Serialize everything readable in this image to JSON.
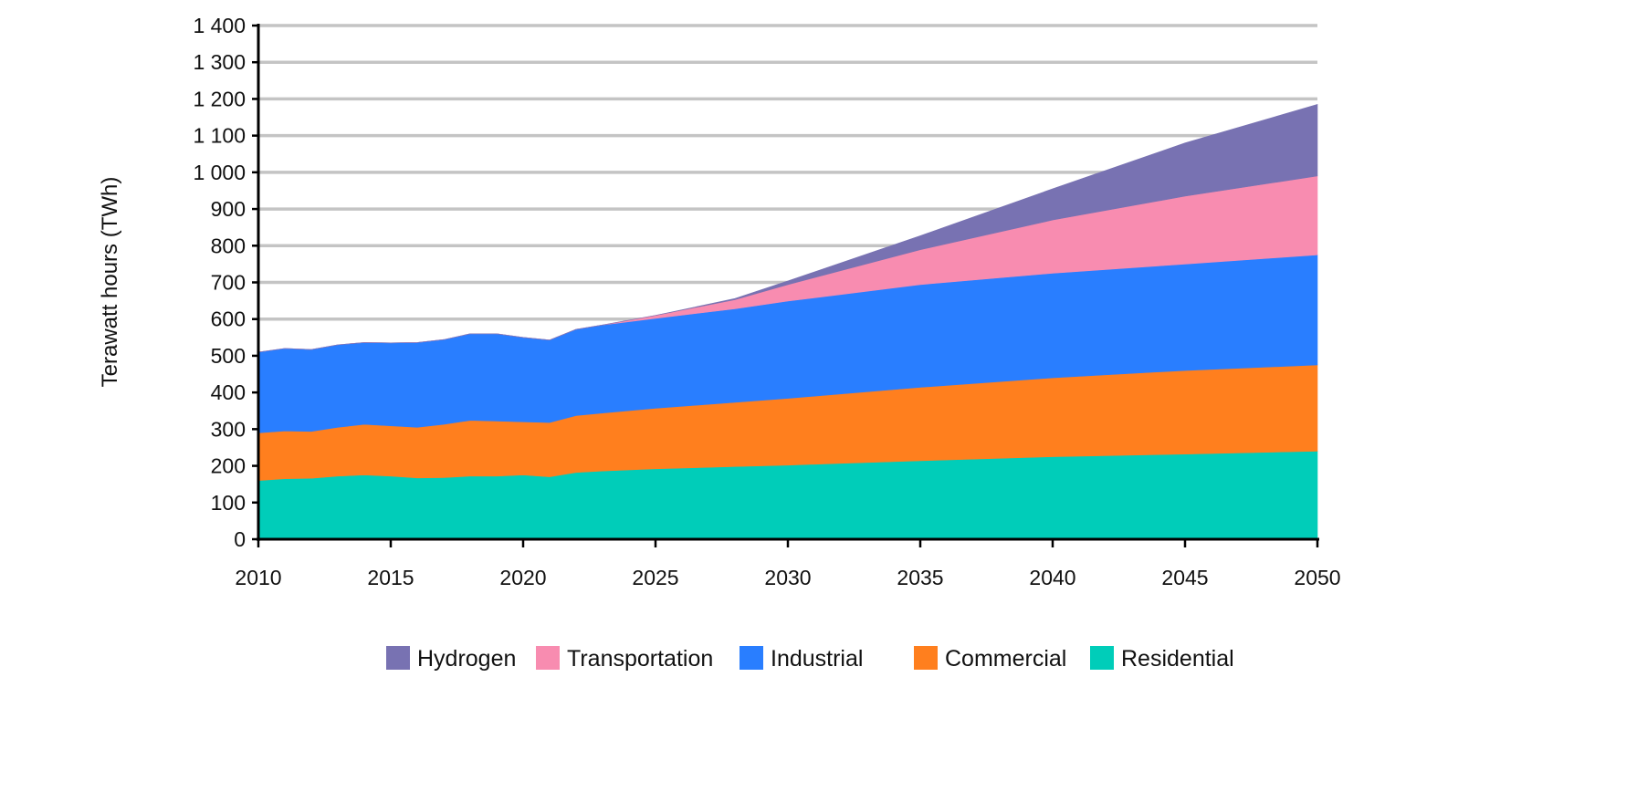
{
  "chart_data": {
    "type": "area",
    "stacked": true,
    "title": "",
    "xlabel": "",
    "ylabel": "Terawatt hours (TWh)",
    "xlim": [
      2010,
      2050
    ],
    "ylim": [
      0,
      1400
    ],
    "grid": true,
    "legend_position": "bottom",
    "x": [
      2010,
      2011,
      2012,
      2013,
      2014,
      2015,
      2016,
      2017,
      2018,
      2019,
      2020,
      2021,
      2022,
      2023,
      2025,
      2028,
      2030,
      2035,
      2040,
      2045,
      2050
    ],
    "x_ticks": [
      {
        "value": 2010,
        "label": "2010"
      },
      {
        "value": 2015,
        "label": "2015"
      },
      {
        "value": 2020,
        "label": "2020"
      },
      {
        "value": 2025,
        "label": "2025"
      },
      {
        "value": 2030,
        "label": "2030"
      },
      {
        "value": 2035,
        "label": "2035"
      },
      {
        "value": 2040,
        "label": "2040"
      },
      {
        "value": 2045,
        "label": "2045"
      },
      {
        "value": 2050,
        "label": "2050"
      }
    ],
    "y_ticks": [
      {
        "value": 0,
        "label": "0"
      },
      {
        "value": 100,
        "label": "100"
      },
      {
        "value": 200,
        "label": "200"
      },
      {
        "value": 300,
        "label": "300"
      },
      {
        "value": 400,
        "label": "400"
      },
      {
        "value": 500,
        "label": "500"
      },
      {
        "value": 600,
        "label": "600"
      },
      {
        "value": 700,
        "label": "700"
      },
      {
        "value": 800,
        "label": "800"
      },
      {
        "value": 900,
        "label": "900"
      },
      {
        "value": 1000,
        "label": "1 000"
      },
      {
        "value": 1100,
        "label": "1 100"
      },
      {
        "value": 1200,
        "label": "1 200"
      },
      {
        "value": 1300,
        "label": "1 300"
      },
      {
        "value": 1400,
        "label": "1 400"
      }
    ],
    "series": [
      {
        "name": "Residential",
        "color": "#00cdb9",
        "values": [
          160,
          165,
          166,
          172,
          175,
          172,
          167,
          168,
          172,
          172,
          175,
          170,
          182,
          186,
          192,
          198,
          202,
          214,
          225,
          232,
          240
        ]
      },
      {
        "name": "Commercial",
        "color": "#ff7f1e",
        "values": [
          130,
          130,
          128,
          133,
          138,
          137,
          138,
          145,
          152,
          150,
          145,
          148,
          155,
          158,
          165,
          175,
          182,
          200,
          215,
          228,
          235
        ]
      },
      {
        "name": "Industrial",
        "color": "#297eff",
        "values": [
          220,
          225,
          223,
          225,
          223,
          226,
          231,
          231,
          236,
          238,
          230,
          225,
          235,
          240,
          245,
          255,
          265,
          280,
          285,
          290,
          300
        ]
      },
      {
        "name": "Transportation",
        "color": "#f88cb0",
        "values": [
          0,
          0,
          0,
          0,
          0,
          0,
          0,
          0,
          0,
          0,
          0,
          0,
          0,
          0,
          8,
          25,
          45,
          95,
          145,
          185,
          215
        ]
      },
      {
        "name": "Hydrogen",
        "color": "#7872b2",
        "values": [
          0,
          0,
          0,
          0,
          0,
          0,
          0,
          0,
          0,
          0,
          0,
          0,
          0,
          0,
          0,
          3,
          10,
          38,
          85,
          145,
          195
        ]
      }
    ],
    "legend": [
      "Hydrogen",
      "Transportation",
      "Industrial",
      "Commercial",
      "Residential"
    ]
  }
}
